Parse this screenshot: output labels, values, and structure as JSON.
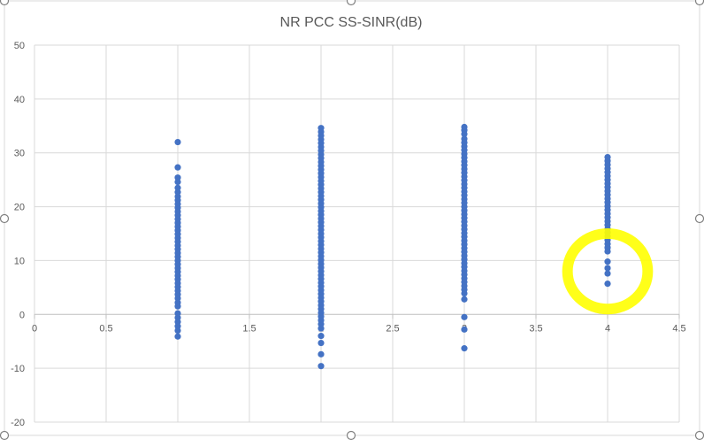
{
  "chart_data": {
    "type": "scatter",
    "title": "NR PCC SS-SINR(dB)",
    "xlabel": "",
    "ylabel": "",
    "xlim": [
      0,
      4.5
    ],
    "ylim": [
      -20,
      50
    ],
    "x_ticks": [
      0,
      0.5,
      1,
      1.5,
      2,
      2.5,
      3,
      3.5,
      4,
      4.5
    ],
    "x_tick_labels": [
      "0",
      "0.5",
      "1",
      "1.5",
      "2",
      "2.5",
      "3",
      "3.5",
      "4",
      "4.5"
    ],
    "y_ticks": [
      -20,
      -10,
      0,
      10,
      20,
      30,
      40,
      50
    ],
    "y_tick_labels": [
      "-20",
      "-10",
      "0",
      "10",
      "20",
      "30",
      "40",
      "50"
    ],
    "grid": true,
    "legend": "none",
    "series": [
      {
        "color": "#4472C4",
        "points": [
          {
            "x": 1,
            "y": 32
          },
          {
            "x": 1,
            "y": 27.3
          },
          {
            "x": 1,
            "y": 25.4
          },
          {
            "x": 1,
            "y": 24.6
          },
          {
            "x": 1,
            "y": 23.5
          },
          {
            "x": 1,
            "y": 22.7
          },
          {
            "x": 1,
            "y": 21.9
          },
          {
            "x": 1,
            "y": 21.2
          },
          {
            "x": 1,
            "y": 20.5
          },
          {
            "x": 1,
            "y": 19.8
          },
          {
            "x": 1,
            "y": 19.1
          },
          {
            "x": 1,
            "y": 18.4
          },
          {
            "x": 1,
            "y": 17.7
          },
          {
            "x": 1,
            "y": 17.0
          },
          {
            "x": 1,
            "y": 16.3
          },
          {
            "x": 1,
            "y": 15.6
          },
          {
            "x": 1,
            "y": 14.9
          },
          {
            "x": 1,
            "y": 14.2
          },
          {
            "x": 1,
            "y": 13.5
          },
          {
            "x": 1,
            "y": 12.8
          },
          {
            "x": 1,
            "y": 12.1
          },
          {
            "x": 1,
            "y": 11.4
          },
          {
            "x": 1,
            "y": 10.7
          },
          {
            "x": 1,
            "y": 10.0
          },
          {
            "x": 1,
            "y": 9.3
          },
          {
            "x": 1,
            "y": 8.6
          },
          {
            "x": 1,
            "y": 7.9
          },
          {
            "x": 1,
            "y": 7.2
          },
          {
            "x": 1,
            "y": 6.5
          },
          {
            "x": 1,
            "y": 5.8
          },
          {
            "x": 1,
            "y": 5.1
          },
          {
            "x": 1,
            "y": 4.4
          },
          {
            "x": 1,
            "y": 3.7
          },
          {
            "x": 1,
            "y": 3.0
          },
          {
            "x": 1,
            "y": 2.2
          },
          {
            "x": 1,
            "y": 1.5
          },
          {
            "x": 1,
            "y": 0.2
          },
          {
            "x": 1,
            "y": -0.6
          },
          {
            "x": 1,
            "y": -1.4
          },
          {
            "x": 1,
            "y": -2.2
          },
          {
            "x": 1,
            "y": -3.0
          },
          {
            "x": 1,
            "y": -4.1
          },
          {
            "x": 2,
            "y": 34.6
          },
          {
            "x": 2,
            "y": 33.9
          },
          {
            "x": 2,
            "y": 33.2
          },
          {
            "x": 2,
            "y": 32.5
          },
          {
            "x": 2,
            "y": 31.8
          },
          {
            "x": 2,
            "y": 31.1
          },
          {
            "x": 2,
            "y": 30.4
          },
          {
            "x": 2,
            "y": 29.7
          },
          {
            "x": 2,
            "y": 29.0
          },
          {
            "x": 2,
            "y": 28.3
          },
          {
            "x": 2,
            "y": 27.6
          },
          {
            "x": 2,
            "y": 26.9
          },
          {
            "x": 2,
            "y": 26.2
          },
          {
            "x": 2,
            "y": 25.5
          },
          {
            "x": 2,
            "y": 24.8
          },
          {
            "x": 2,
            "y": 24.1
          },
          {
            "x": 2,
            "y": 23.4
          },
          {
            "x": 2,
            "y": 22.7
          },
          {
            "x": 2,
            "y": 22.0
          },
          {
            "x": 2,
            "y": 21.3
          },
          {
            "x": 2,
            "y": 20.6
          },
          {
            "x": 2,
            "y": 19.9
          },
          {
            "x": 2,
            "y": 19.2
          },
          {
            "x": 2,
            "y": 18.5
          },
          {
            "x": 2,
            "y": 17.8
          },
          {
            "x": 2,
            "y": 17.1
          },
          {
            "x": 2,
            "y": 16.4
          },
          {
            "x": 2,
            "y": 15.7
          },
          {
            "x": 2,
            "y": 15.0
          },
          {
            "x": 2,
            "y": 14.3
          },
          {
            "x": 2,
            "y": 13.6
          },
          {
            "x": 2,
            "y": 12.9
          },
          {
            "x": 2,
            "y": 12.2
          },
          {
            "x": 2,
            "y": 11.5
          },
          {
            "x": 2,
            "y": 10.8
          },
          {
            "x": 2,
            "y": 10.1
          },
          {
            "x": 2,
            "y": 9.4
          },
          {
            "x": 2,
            "y": 8.7
          },
          {
            "x": 2,
            "y": 8.0
          },
          {
            "x": 2,
            "y": 7.3
          },
          {
            "x": 2,
            "y": 6.6
          },
          {
            "x": 2,
            "y": 5.9
          },
          {
            "x": 2,
            "y": 5.2
          },
          {
            "x": 2,
            "y": 4.5
          },
          {
            "x": 2,
            "y": 3.8
          },
          {
            "x": 2,
            "y": 3.1
          },
          {
            "x": 2,
            "y": 2.4
          },
          {
            "x": 2,
            "y": 1.7
          },
          {
            "x": 2,
            "y": 1.0
          },
          {
            "x": 2,
            "y": 0.3
          },
          {
            "x": 2,
            "y": -0.4
          },
          {
            "x": 2,
            "y": -1.1
          },
          {
            "x": 2,
            "y": -1.8
          },
          {
            "x": 2,
            "y": -2.6
          },
          {
            "x": 2,
            "y": -4.0
          },
          {
            "x": 2,
            "y": -5.3
          },
          {
            "x": 2,
            "y": -7.4
          },
          {
            "x": 2,
            "y": -9.6
          },
          {
            "x": 3,
            "y": 34.8
          },
          {
            "x": 3,
            "y": 34.2
          },
          {
            "x": 3,
            "y": 33.5
          },
          {
            "x": 3,
            "y": 32.6
          },
          {
            "x": 3,
            "y": 31.9
          },
          {
            "x": 3,
            "y": 31.2
          },
          {
            "x": 3,
            "y": 30.5
          },
          {
            "x": 3,
            "y": 29.8
          },
          {
            "x": 3,
            "y": 29.1
          },
          {
            "x": 3,
            "y": 28.4
          },
          {
            "x": 3,
            "y": 27.7
          },
          {
            "x": 3,
            "y": 27.0
          },
          {
            "x": 3,
            "y": 26.3
          },
          {
            "x": 3,
            "y": 25.6
          },
          {
            "x": 3,
            "y": 24.9
          },
          {
            "x": 3,
            "y": 24.2
          },
          {
            "x": 3,
            "y": 23.5
          },
          {
            "x": 3,
            "y": 22.8
          },
          {
            "x": 3,
            "y": 22.1
          },
          {
            "x": 3,
            "y": 21.4
          },
          {
            "x": 3,
            "y": 20.7
          },
          {
            "x": 3,
            "y": 20.0
          },
          {
            "x": 3,
            "y": 19.3
          },
          {
            "x": 3,
            "y": 18.6
          },
          {
            "x": 3,
            "y": 17.9
          },
          {
            "x": 3,
            "y": 17.2
          },
          {
            "x": 3,
            "y": 16.5
          },
          {
            "x": 3,
            "y": 15.8
          },
          {
            "x": 3,
            "y": 15.1
          },
          {
            "x": 3,
            "y": 14.4
          },
          {
            "x": 3,
            "y": 13.7
          },
          {
            "x": 3,
            "y": 13.0
          },
          {
            "x": 3,
            "y": 12.3
          },
          {
            "x": 3,
            "y": 11.6
          },
          {
            "x": 3,
            "y": 10.9
          },
          {
            "x": 3,
            "y": 10.2
          },
          {
            "x": 3,
            "y": 9.5
          },
          {
            "x": 3,
            "y": 8.8
          },
          {
            "x": 3,
            "y": 8.1
          },
          {
            "x": 3,
            "y": 7.4
          },
          {
            "x": 3,
            "y": 6.7
          },
          {
            "x": 3,
            "y": 6.0
          },
          {
            "x": 3,
            "y": 5.3
          },
          {
            "x": 3,
            "y": 4.6
          },
          {
            "x": 3,
            "y": 3.9
          },
          {
            "x": 3,
            "y": 2.8
          },
          {
            "x": 3,
            "y": -0.5
          },
          {
            "x": 3,
            "y": -2.8
          },
          {
            "x": 3,
            "y": -6.3
          },
          {
            "x": 4,
            "y": 29.2
          },
          {
            "x": 4,
            "y": 28.5
          },
          {
            "x": 4,
            "y": 27.8
          },
          {
            "x": 4,
            "y": 27.1
          },
          {
            "x": 4,
            "y": 26.4
          },
          {
            "x": 4,
            "y": 25.7
          },
          {
            "x": 4,
            "y": 25.0
          },
          {
            "x": 4,
            "y": 24.3
          },
          {
            "x": 4,
            "y": 23.6
          },
          {
            "x": 4,
            "y": 22.9
          },
          {
            "x": 4,
            "y": 22.2
          },
          {
            "x": 4,
            "y": 21.5
          },
          {
            "x": 4,
            "y": 20.8
          },
          {
            "x": 4,
            "y": 20.1
          },
          {
            "x": 4,
            "y": 19.4
          },
          {
            "x": 4,
            "y": 18.7
          },
          {
            "x": 4,
            "y": 18.0
          },
          {
            "x": 4,
            "y": 17.3
          },
          {
            "x": 4,
            "y": 16.6
          },
          {
            "x": 4,
            "y": 15.9
          },
          {
            "x": 4,
            "y": 15.2
          },
          {
            "x": 4,
            "y": 14.5
          },
          {
            "x": 4,
            "y": 13.8
          },
          {
            "x": 4,
            "y": 13.1
          },
          {
            "x": 4,
            "y": 12.4
          },
          {
            "x": 4,
            "y": 11.7
          },
          {
            "x": 4,
            "y": 9.8
          },
          {
            "x": 4,
            "y": 8.6
          },
          {
            "x": 4,
            "y": 7.6
          },
          {
            "x": 4,
            "y": 5.7
          }
        ]
      }
    ],
    "annotation": {
      "type": "hand-drawn-ellipse",
      "color": "#FFFF00",
      "center": {
        "x": 4,
        "y": 8
      },
      "x_radius": 0.28,
      "y_radius": 7
    }
  },
  "chart_frame": {
    "border_color": "#D9D9D9",
    "handle_color": "#808080",
    "text_color": "#595959",
    "grid_color": "#D9D9D9",
    "zero_axis_color": "#BFBFBF"
  }
}
